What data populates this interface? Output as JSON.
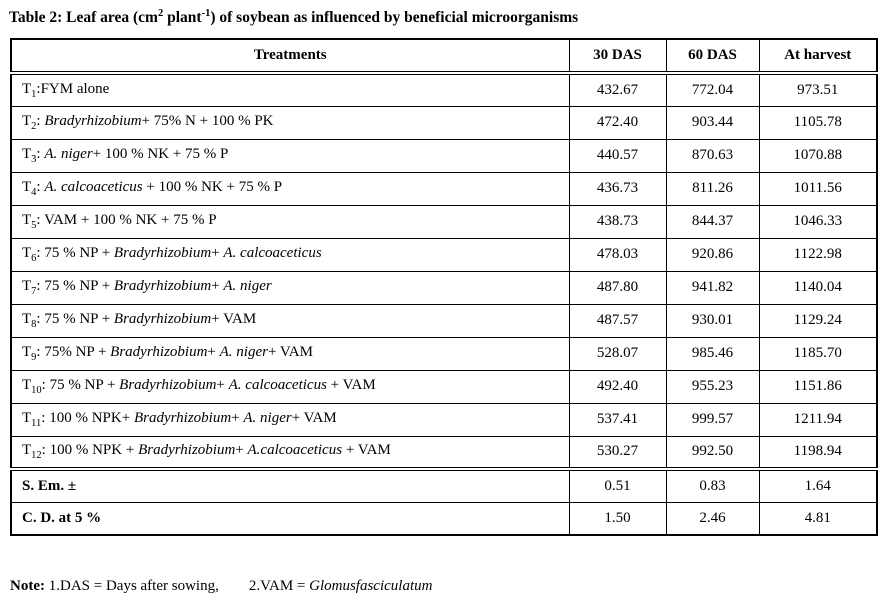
{
  "title": {
    "part1": "Table 2: Leaf area (cm",
    "sup1": "2",
    "part2": " plant",
    "sup2": "-1",
    "part3": ") of soybean as influenced by beneficial microorganisms"
  },
  "table": {
    "columns": [
      "Treatments",
      "30 DAS",
      "60 DAS",
      "At harvest"
    ],
    "rows": [
      {
        "t": "T",
        "sub": "1",
        "segments": [
          {
            "text": ":FYM alone",
            "italic": false
          }
        ],
        "values": [
          "432.67",
          "772.04",
          "973.51"
        ]
      },
      {
        "t": "T",
        "sub": "2",
        "segments": [
          {
            "text": ": ",
            "italic": false
          },
          {
            "text": "Bradyrhizobium",
            "italic": true
          },
          {
            "text": "+ 75% N + 100 % PK",
            "italic": false
          }
        ],
        "values": [
          "472.40",
          "903.44",
          "1105.78"
        ]
      },
      {
        "t": "T",
        "sub": "3",
        "segments": [
          {
            "text": ": ",
            "italic": false
          },
          {
            "text": "A. niger",
            "italic": true
          },
          {
            "text": "+ 100 % NK + 75 % P",
            "italic": false
          }
        ],
        "values": [
          "440.57",
          "870.63",
          "1070.88"
        ]
      },
      {
        "t": "T",
        "sub": "4",
        "segments": [
          {
            "text": ": ",
            "italic": false
          },
          {
            "text": "A. calcoaceticus",
            "italic": true
          },
          {
            "text": " + 100 % NK + 75 % P",
            "italic": false
          }
        ],
        "values": [
          "436.73",
          "811.26",
          "1011.56"
        ]
      },
      {
        "t": "T",
        "sub": "5",
        "segments": [
          {
            "text": ": VAM + 100 % NK + 75 % P",
            "italic": false
          }
        ],
        "values": [
          "438.73",
          "844.37",
          "1046.33"
        ]
      },
      {
        "t": "T",
        "sub": "6",
        "segments": [
          {
            "text": ": 75 % NP + ",
            "italic": false
          },
          {
            "text": "Bradyrhizobium",
            "italic": true
          },
          {
            "text": "+ ",
            "italic": false
          },
          {
            "text": "A. calcoaceticus",
            "italic": true
          }
        ],
        "values": [
          "478.03",
          "920.86",
          "1122.98"
        ]
      },
      {
        "t": "T",
        "sub": "7",
        "segments": [
          {
            "text": ": 75 % NP + ",
            "italic": false
          },
          {
            "text": "Bradyrhizobium",
            "italic": true
          },
          {
            "text": "+ ",
            "italic": false
          },
          {
            "text": "A. niger",
            "italic": true
          }
        ],
        "values": [
          "487.80",
          "941.82",
          "1140.04"
        ]
      },
      {
        "t": "T",
        "sub": "8",
        "segments": [
          {
            "text": ": 75 % NP + ",
            "italic": false
          },
          {
            "text": "Bradyrhizobium",
            "italic": true
          },
          {
            "text": "+ VAM",
            "italic": false
          }
        ],
        "values": [
          "487.57",
          "930.01",
          "1129.24"
        ]
      },
      {
        "t": "T",
        "sub": "9",
        "segments": [
          {
            "text": ": 75% NP + ",
            "italic": false
          },
          {
            "text": "Bradyrhizobium",
            "italic": true
          },
          {
            "text": "+ ",
            "italic": false
          },
          {
            "text": "A. niger",
            "italic": true
          },
          {
            "text": "+ VAM",
            "italic": false
          }
        ],
        "values": [
          "528.07",
          "985.46",
          "1185.70"
        ]
      },
      {
        "t": "T",
        "sub": "10",
        "segments": [
          {
            "text": ": 75 % NP + ",
            "italic": false
          },
          {
            "text": "Bradyrhizobium",
            "italic": true
          },
          {
            "text": "+ ",
            "italic": false
          },
          {
            "text": "A. calcoaceticus",
            "italic": true
          },
          {
            "text": " + VAM",
            "italic": false
          }
        ],
        "values": [
          "492.40",
          "955.23",
          "1151.86"
        ]
      },
      {
        "t": "T",
        "sub": "11",
        "segments": [
          {
            "text": ": 100 % NPK+ ",
            "italic": false
          },
          {
            "text": "Bradyrhizobium",
            "italic": true
          },
          {
            "text": "+ ",
            "italic": false
          },
          {
            "text": "A. niger",
            "italic": true
          },
          {
            "text": "+ VAM",
            "italic": false
          }
        ],
        "values": [
          "537.41",
          "999.57",
          "1211.94"
        ]
      },
      {
        "t": "T",
        "sub": "12",
        "segments": [
          {
            "text": ": 100 % NPK + ",
            "italic": false
          },
          {
            "text": "Bradyrhizobium",
            "italic": true
          },
          {
            "text": "+ ",
            "italic": false
          },
          {
            "text": "A.calcoaceticus",
            "italic": true
          },
          {
            "text": " + VAM",
            "italic": false
          }
        ],
        "values": [
          "530.27",
          "992.50",
          "1198.94"
        ]
      }
    ],
    "summary_rows": [
      {
        "label": "S. Em. ±",
        "values": [
          "0.51",
          "0.83",
          "1.64"
        ]
      },
      {
        "label": "C. D. at 5 %",
        "values": [
          "1.50",
          "2.46",
          "4.81"
        ]
      }
    ]
  },
  "note": {
    "label": "Note:",
    "part1": " 1.DAS = Days after sowing,",
    "part2": "2.VAM = ",
    "italic_term": "Glomusfasciculatum"
  }
}
